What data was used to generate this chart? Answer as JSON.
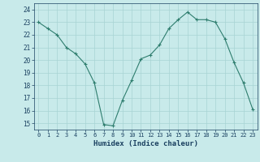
{
  "x": [
    0,
    1,
    2,
    3,
    4,
    5,
    6,
    7,
    8,
    9,
    10,
    11,
    12,
    13,
    14,
    15,
    16,
    17,
    18,
    19,
    20,
    21,
    22,
    23
  ],
  "y": [
    23.0,
    22.5,
    22.0,
    21.0,
    20.5,
    19.7,
    18.2,
    14.9,
    14.8,
    16.8,
    18.4,
    20.1,
    20.4,
    21.2,
    22.5,
    23.2,
    23.8,
    23.2,
    23.2,
    23.0,
    21.7,
    19.8,
    18.2,
    16.1
  ],
  "xlabel": "Humidex (Indice chaleur)",
  "xlim": [
    -0.5,
    23.5
  ],
  "ylim": [
    14.5,
    24.5
  ],
  "yticks": [
    15,
    16,
    17,
    18,
    19,
    20,
    21,
    22,
    23,
    24
  ],
  "xticks": [
    0,
    1,
    2,
    3,
    4,
    5,
    6,
    7,
    8,
    9,
    10,
    11,
    12,
    13,
    14,
    15,
    16,
    17,
    18,
    19,
    20,
    21,
    22,
    23
  ],
  "line_color": "#2e7d6e",
  "marker": "+",
  "bg_color": "#c8eaea",
  "grid_color": "#a8d4d4",
  "text_color": "#1a4060"
}
